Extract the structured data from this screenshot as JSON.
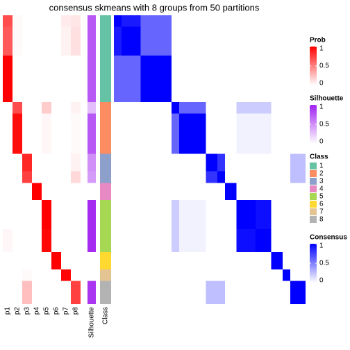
{
  "chart_data": {
    "type": "heatmap",
    "title": "consensus skmeans with 8 groups from 50 partitions",
    "columns": [
      "p1",
      "p2",
      "p3",
      "p4",
      "p5",
      "p6",
      "p7",
      "p8"
    ],
    "silhouette_label": "Silhouette",
    "class_label": "Class",
    "classes": [
      {
        "label": "1",
        "color": "#66C2A5",
        "segments": [
          {
            "size": 2,
            "prob": [
              0.7,
              0.02,
              0,
              0,
              0,
              0,
              0.08,
              0.1
            ],
            "silhouette": 0.75
          },
          {
            "size": 5,
            "prob": [
              0.65,
              0.02,
              0,
              0,
              0,
              0,
              0.05,
              0.12
            ],
            "silhouette": 0.75
          },
          {
            "size": 8,
            "prob": [
              1,
              0,
              0,
              0,
              0,
              0,
              0,
              0
            ],
            "silhouette": 0.75
          }
        ]
      },
      {
        "label": "2",
        "color": "#FC8D62",
        "segments": [
          {
            "size": 2,
            "prob": [
              0,
              0.7,
              0,
              0,
              0.2,
              0,
              0,
              0.05
            ],
            "silhouette": 0.3
          },
          {
            "size": 7,
            "prob": [
              0,
              0.95,
              0,
              0,
              0.03,
              0,
              0,
              0.02
            ],
            "silhouette": 0.75
          }
        ]
      },
      {
        "label": "3",
        "color": "#8DA0CB",
        "segments": [
          {
            "size": 3,
            "prob": [
              0,
              0,
              0.85,
              0,
              0,
              0,
              0,
              0.05
            ],
            "silhouette": 0.5
          },
          {
            "size": 2,
            "prob": [
              0,
              0,
              0.75,
              0,
              0,
              0,
              0,
              0.15
            ],
            "silhouette": 0.45
          }
        ]
      },
      {
        "label": "4",
        "color": "#E78AC3",
        "segments": [
          {
            "size": 3,
            "prob": [
              0,
              0,
              0,
              1,
              0,
              0,
              0,
              0
            ],
            "silhouette": 0
          }
        ]
      },
      {
        "label": "5",
        "color": "#A6D854",
        "segments": [
          {
            "size": 5,
            "prob": [
              0,
              0,
              0,
              0,
              1,
              0,
              0,
              0
            ],
            "silhouette": 0.95
          },
          {
            "size": 4,
            "prob": [
              0.03,
              0,
              0,
              0,
              0.97,
              0,
              0,
              0
            ],
            "silhouette": 0.95
          }
        ]
      },
      {
        "label": "6",
        "color": "#FFD92F",
        "segments": [
          {
            "size": 3,
            "prob": [
              0,
              0,
              0,
              0,
              0,
              1,
              0,
              0
            ],
            "silhouette": 0
          }
        ]
      },
      {
        "label": "7",
        "color": "#E5C494",
        "segments": [
          {
            "size": 2,
            "prob": [
              0,
              0,
              0.02,
              0,
              0,
              0,
              0.98,
              0
            ],
            "silhouette": 0
          }
        ]
      },
      {
        "label": "8",
        "color": "#B3B3B3",
        "segments": [
          {
            "size": 4,
            "prob": [
              0,
              0,
              0.25,
              0,
              0,
              0,
              0,
              0.75
            ],
            "silhouette": 0.9
          }
        ]
      }
    ],
    "consensus": [
      [
        1,
        0.9,
        0.6,
        0,
        0,
        0,
        0,
        0,
        0,
        0,
        0,
        0,
        0
      ],
      [
        0.9,
        1,
        0.6,
        0,
        0,
        0,
        0,
        0,
        0,
        0,
        0,
        0,
        0
      ],
      [
        0.6,
        0.6,
        1,
        0,
        0,
        0,
        0,
        0,
        0,
        0,
        0,
        0,
        0
      ],
      [
        0,
        0,
        0,
        1,
        0.6,
        0,
        0,
        0,
        0.2,
        0.2,
        0,
        0,
        0
      ],
      [
        0,
        0,
        0,
        0.6,
        1,
        0,
        0,
        0,
        0.05,
        0.05,
        0,
        0,
        0
      ],
      [
        0,
        0,
        0,
        0,
        0,
        1,
        0.8,
        0,
        0,
        0,
        0,
        0,
        0.25
      ],
      [
        0,
        0,
        0,
        0,
        0,
        0.8,
        1,
        0,
        0,
        0,
        0,
        0,
        0.25
      ],
      [
        0,
        0,
        0,
        0,
        0,
        0,
        0,
        1,
        0,
        0,
        0,
        0,
        0
      ],
      [
        0,
        0,
        0,
        0.2,
        0.05,
        0,
        0,
        0,
        1,
        0.95,
        0,
        0,
        0
      ],
      [
        0,
        0,
        0,
        0.2,
        0.05,
        0,
        0,
        0,
        0.95,
        1,
        0,
        0,
        0
      ],
      [
        0,
        0,
        0,
        0,
        0,
        0,
        0,
        0,
        0,
        0,
        1,
        0,
        0
      ],
      [
        0,
        0,
        0,
        0,
        0,
        0,
        0,
        0,
        0,
        0,
        0,
        1,
        0
      ],
      [
        0,
        0,
        0,
        0,
        0,
        0.25,
        0.25,
        0,
        0,
        0,
        0,
        0,
        1
      ]
    ],
    "legends": {
      "prob": {
        "title": "Prob",
        "color": "#FF0000",
        "ticks": [
          1,
          0.5,
          0
        ]
      },
      "silhouette": {
        "title": "Silhouette",
        "color": "#A020F0",
        "ticks": [
          1,
          0.5,
          0
        ]
      },
      "class": {
        "title": "Class"
      },
      "consensus": {
        "title": "Consensus",
        "color": "#0000FF",
        "ticks": [
          1,
          0.5,
          0
        ]
      }
    }
  }
}
